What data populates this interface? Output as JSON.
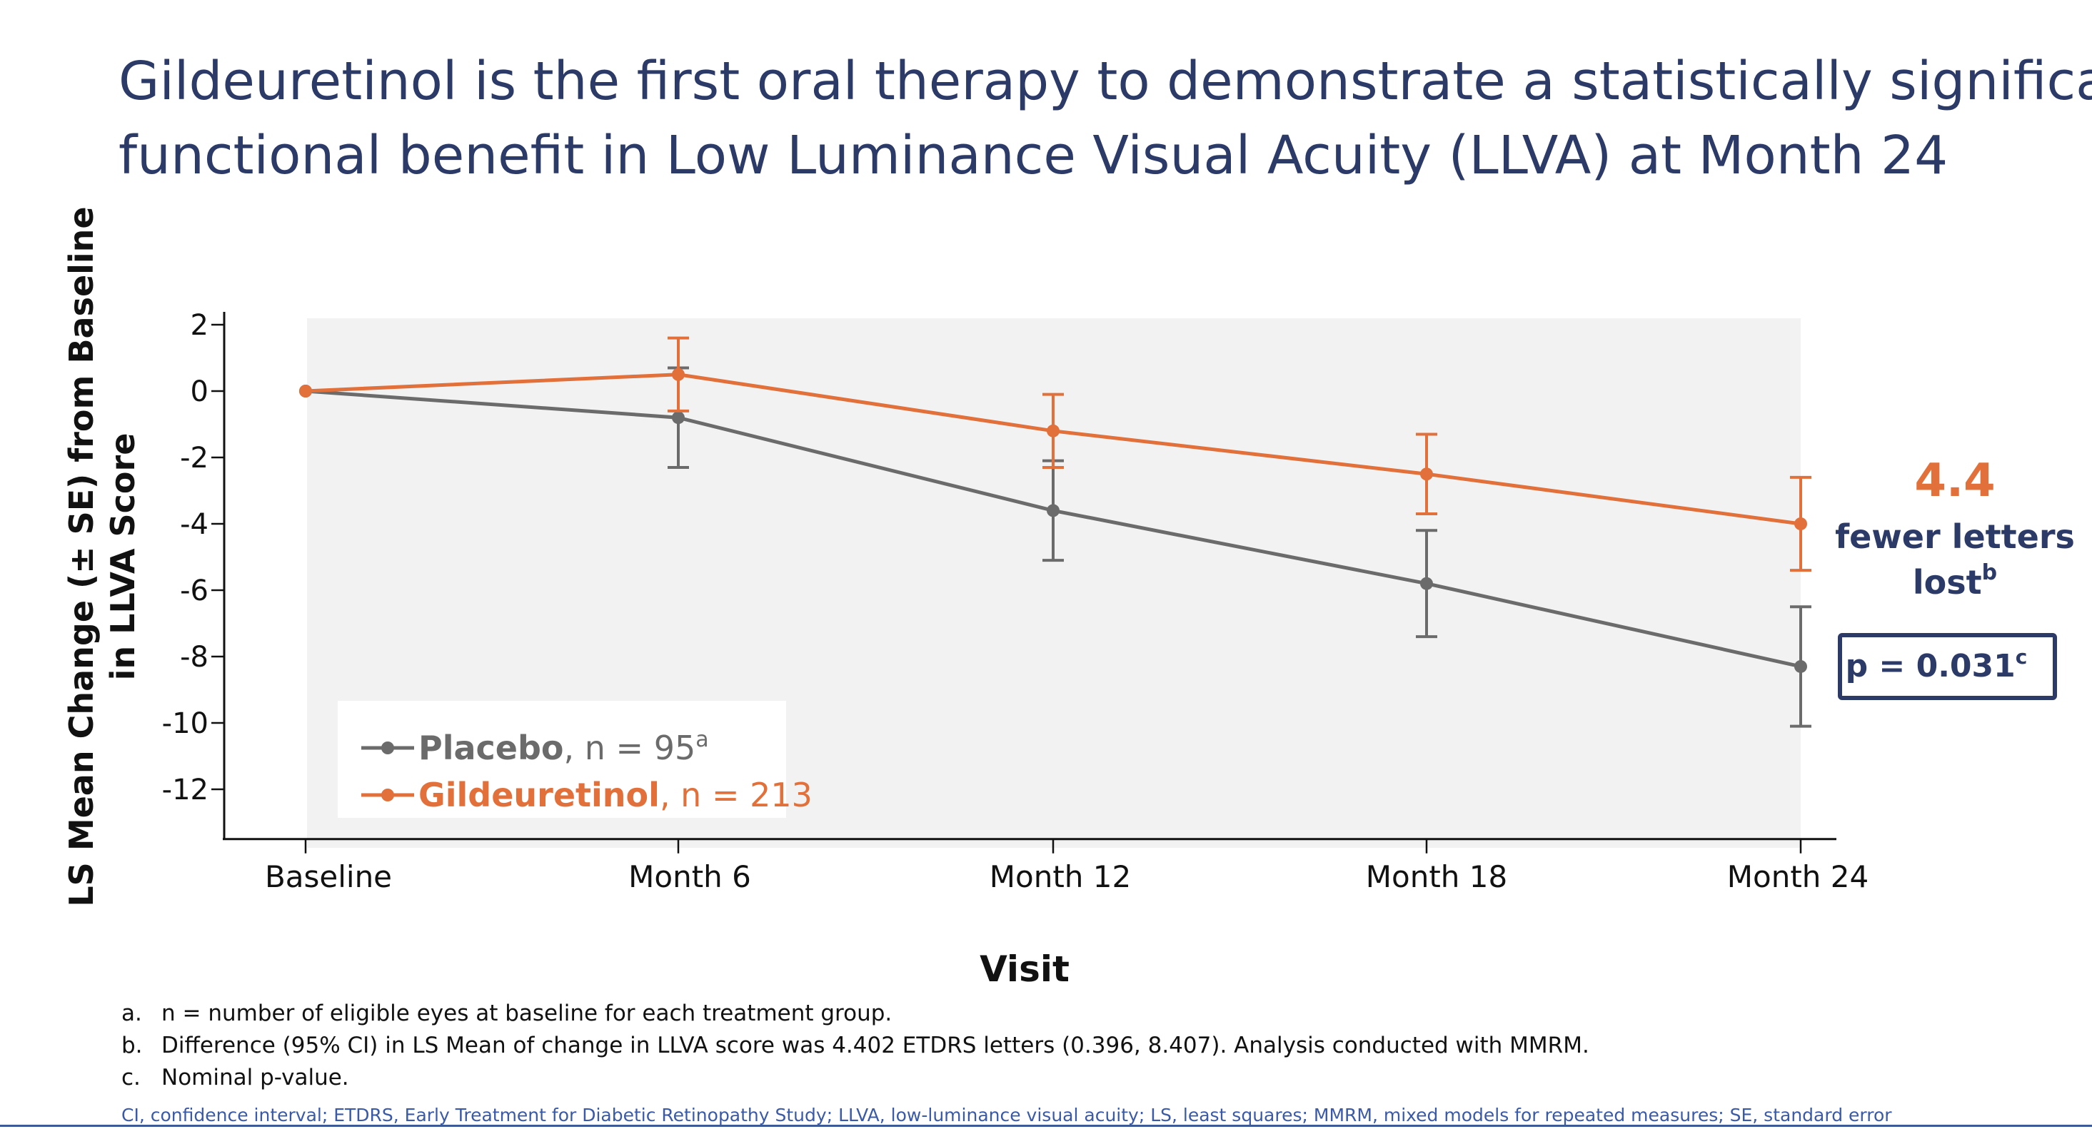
{
  "title": {
    "line1": "Gildeuretinol is the first oral therapy to demonstrate a statistically significant",
    "line2": "functional benefit in Low Luminance Visual Acuity (LLVA) at Month 24"
  },
  "chart_data": {
    "type": "line",
    "title": "",
    "xlabel": "Visit",
    "ylabel": "LS Mean Change (± SE) from Baseline in LLVA Score",
    "ylabel_lines": [
      "LS Mean Change (± SE) from Baseline",
      "in LLVA Score"
    ],
    "categories": [
      "Baseline",
      "Month 6",
      "Month 12",
      "Month 18",
      "Month 24"
    ],
    "ylim": [
      -13.5,
      2.2
    ],
    "yticks": [
      2,
      0,
      -2,
      -4,
      -6,
      -8,
      -10,
      -12
    ],
    "ytick_labels": [
      "2",
      "0",
      "-2",
      "-4",
      "-6",
      "-8",
      "-10",
      "-12"
    ],
    "grid": false,
    "legend_position": "bottom-left",
    "series": [
      {
        "key": "placebo",
        "name": "Placebo",
        "legend_suffix": ", n = 95",
        "legend_sup": "a",
        "color": "#6b6b6b",
        "values": [
          0,
          -0.8,
          -3.6,
          -5.8,
          -8.3
        ],
        "se": [
          0,
          1.5,
          1.5,
          1.6,
          1.8
        ]
      },
      {
        "key": "gildeuretinol",
        "name": "Gildeuretinol",
        "legend_suffix": ", n = 213",
        "legend_sup": "",
        "color": "#e2703a",
        "values": [
          0,
          0.5,
          -1.2,
          -2.5,
          -4.0
        ],
        "se": [
          0,
          1.1,
          1.1,
          1.2,
          1.4
        ]
      }
    ],
    "annotation": {
      "value": "4.4",
      "line1": "fewer letters",
      "line2": "lost",
      "line2_sup": "b",
      "pvalue": "p = 0.031",
      "pvalue_sup": "c"
    }
  },
  "footnotes": [
    {
      "marker": "a.",
      "text": "n = number of eligible eyes at baseline for each treatment group."
    },
    {
      "marker": "b.",
      "text": "Difference (95% CI) in LS Mean of change in LLVA score was 4.402 ETDRS letters (0.396, 8.407). Analysis conducted with MMRM."
    },
    {
      "marker": "c.",
      "text": "Nominal p-value."
    }
  ],
  "abbreviations": "CI, confidence interval; ETDRS, Early Treatment for Diabetic Retinopathy Study; LLVA, low-luminance visual acuity; LS, least squares; MMRM, mixed models for repeated measures; SE, standard error",
  "colors": {
    "title": "#2b3a67",
    "placebo": "#6b6b6b",
    "gildeuretinol": "#e2703a",
    "plot_background": "#f2f2f2",
    "pvalue_border": "#2b3a67",
    "abbreviations": "#3a5aa8"
  }
}
